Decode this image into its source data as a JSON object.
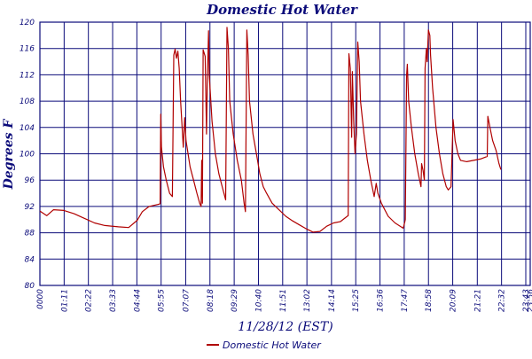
{
  "chart_data": {
    "type": "line",
    "title": "Domestic Hot Water",
    "xlabel": "11/28/12 (EST)",
    "ylabel": "Degrees F",
    "ylim": [
      80,
      120
    ],
    "yticks": [
      80,
      84,
      88,
      92,
      96,
      100,
      104,
      108,
      112,
      116,
      120
    ],
    "xticks_minutes": [
      0,
      71,
      142,
      213,
      284,
      355,
      427,
      498,
      569,
      640,
      711,
      782,
      854,
      925,
      996,
      1067,
      1138,
      1209,
      1281,
      1352,
      1423,
      1436
    ],
    "xtick_labels": [
      "0000",
      "01:11",
      "02:22",
      "03:33",
      "04:44",
      "05:55",
      "07:07",
      "08:18",
      "09:29",
      "10:40",
      "11:51",
      "13:02",
      "14:14",
      "15:25",
      "16:36",
      "17:47",
      "18:58",
      "20:09",
      "21:21",
      "22:32",
      "23:43",
      "23:56"
    ],
    "xlim_minutes": [
      0,
      1436
    ],
    "grid": true,
    "legend_position": "bottom-center",
    "series": [
      {
        "name": "Domestic Hot Water",
        "color": "#b00000",
        "points": [
          [
            0,
            91.3
          ],
          [
            20,
            90.6
          ],
          [
            40,
            91.5
          ],
          [
            70,
            91.4
          ],
          [
            100,
            90.9
          ],
          [
            130,
            90.2
          ],
          [
            160,
            89.5
          ],
          [
            190,
            89.1
          ],
          [
            230,
            88.9
          ],
          [
            260,
            88.8
          ],
          [
            285,
            89.9
          ],
          [
            300,
            91.2
          ],
          [
            320,
            92.0
          ],
          [
            345,
            92.3
          ],
          [
            352,
            92.4
          ],
          [
            354,
            106.0
          ],
          [
            356,
            101.0
          ],
          [
            362,
            98.0
          ],
          [
            370,
            96.0
          ],
          [
            380,
            94.0
          ],
          [
            388,
            93.5
          ],
          [
            392,
            115.0
          ],
          [
            396,
            115.9
          ],
          [
            400,
            114.5
          ],
          [
            404,
            115.6
          ],
          [
            408,
            113.0
          ],
          [
            412,
            108.0
          ],
          [
            420,
            101.0
          ],
          [
            424,
            105.5
          ],
          [
            428,
            102.0
          ],
          [
            440,
            98.0
          ],
          [
            450,
            96.0
          ],
          [
            460,
            94.0
          ],
          [
            468,
            92.5
          ],
          [
            472,
            92.0
          ],
          [
            474,
            99.0
          ],
          [
            476,
            92.5
          ],
          [
            478,
            115.8
          ],
          [
            484,
            114.8
          ],
          [
            488,
            103.0
          ],
          [
            490,
            110.0
          ],
          [
            494,
            118.7
          ],
          [
            496,
            112.0
          ],
          [
            504,
            105.0
          ],
          [
            514,
            100.0
          ],
          [
            524,
            97.0
          ],
          [
            534,
            95.0
          ],
          [
            544,
            93.0
          ],
          [
            548,
            119.2
          ],
          [
            552,
            116.0
          ],
          [
            556,
            108.0
          ],
          [
            566,
            103.0
          ],
          [
            578,
            99.0
          ],
          [
            590,
            96.0
          ],
          [
            598,
            92.5
          ],
          [
            602,
            91.2
          ],
          [
            606,
            118.8
          ],
          [
            610,
            115.0
          ],
          [
            614,
            108.0
          ],
          [
            624,
            103.0
          ],
          [
            634,
            100.0
          ],
          [
            644,
            97.0
          ],
          [
            654,
            95.0
          ],
          [
            664,
            94.0
          ],
          [
            680,
            92.5
          ],
          [
            700,
            91.5
          ],
          [
            720,
            90.5
          ],
          [
            740,
            89.8
          ],
          [
            760,
            89.2
          ],
          [
            780,
            88.6
          ],
          [
            800,
            88.1
          ],
          [
            820,
            88.2
          ],
          [
            840,
            89.0
          ],
          [
            860,
            89.5
          ],
          [
            880,
            89.7
          ],
          [
            900,
            90.5
          ],
          [
            903,
            90.6
          ],
          [
            905,
            115.2
          ],
          [
            909,
            113.0
          ],
          [
            913,
            102.5
          ],
          [
            915,
            112.5
          ],
          [
            919,
            105.0
          ],
          [
            923,
            100.0
          ],
          [
            927,
            103.0
          ],
          [
            931,
            117.0
          ],
          [
            935,
            114.0
          ],
          [
            939,
            108.0
          ],
          [
            949,
            103.0
          ],
          [
            959,
            99.0
          ],
          [
            969,
            96.0
          ],
          [
            979,
            93.5
          ],
          [
            985,
            95.5
          ],
          [
            990,
            94.0
          ],
          [
            1000,
            92.5
          ],
          [
            1020,
            90.5
          ],
          [
            1040,
            89.5
          ],
          [
            1055,
            89.0
          ],
          [
            1064,
            88.7
          ],
          [
            1068,
            89.5
          ],
          [
            1070,
            90.0
          ],
          [
            1074,
            112.0
          ],
          [
            1076,
            113.6
          ],
          [
            1080,
            108.0
          ],
          [
            1088,
            104.0
          ],
          [
            1098,
            100.0
          ],
          [
            1108,
            97.0
          ],
          [
            1116,
            95.0
          ],
          [
            1118,
            98.5
          ],
          [
            1122,
            97.5
          ],
          [
            1126,
            96.0
          ],
          [
            1128,
            113.0
          ],
          [
            1132,
            116.0
          ],
          [
            1134,
            114.0
          ],
          [
            1138,
            118.8
          ],
          [
            1142,
            118.0
          ],
          [
            1144,
            115.0
          ],
          [
            1150,
            110.0
          ],
          [
            1160,
            104.0
          ],
          [
            1170,
            100.0
          ],
          [
            1180,
            97.0
          ],
          [
            1190,
            95.0
          ],
          [
            1196,
            94.5
          ],
          [
            1204,
            95.0
          ],
          [
            1210,
            105.2
          ],
          [
            1216,
            102.0
          ],
          [
            1224,
            100.0
          ],
          [
            1232,
            99.0
          ],
          [
            1250,
            98.8
          ],
          [
            1270,
            99.0
          ],
          [
            1290,
            99.2
          ],
          [
            1305,
            99.5
          ],
          [
            1310,
            99.6
          ],
          [
            1312,
            105.7
          ],
          [
            1318,
            104.0
          ],
          [
            1326,
            102.0
          ],
          [
            1336,
            100.5
          ],
          [
            1344,
            98.6
          ],
          [
            1350,
            97.6
          ]
        ]
      }
    ]
  }
}
